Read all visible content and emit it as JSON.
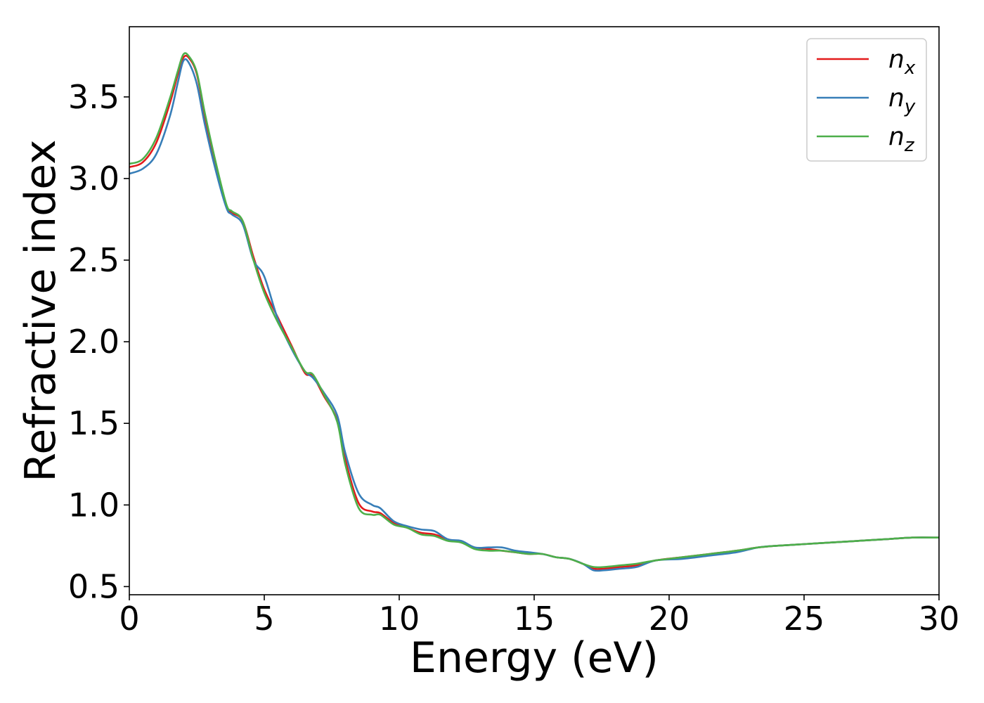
{
  "chart_data": {
    "type": "line",
    "xlabel": "Energy (eV)",
    "ylabel": "Refractive index",
    "xlim": [
      0,
      30
    ],
    "ylim": [
      0.45,
      3.93
    ],
    "xticks": [
      "0",
      "5",
      "10",
      "15",
      "20",
      "25",
      "30"
    ],
    "yticks": [
      "0.5",
      "1.0",
      "1.5",
      "2.0",
      "2.5",
      "3.0",
      "3.5"
    ],
    "grid": false,
    "legend_position": "top-right",
    "series": [
      {
        "name": "n",
        "subscript": "x",
        "color": "#e31a1c",
        "x": [
          0,
          0.5,
          1,
          1.5,
          1.8,
          2.0,
          2.2,
          2.5,
          2.8,
          3.2,
          3.6,
          3.8,
          4.2,
          4.6,
          5.0,
          5.5,
          6.0,
          6.5,
          6.8,
          7.2,
          7.7,
          8.0,
          8.5,
          9.0,
          9.3,
          9.8,
          10.3,
          10.8,
          11.3,
          11.8,
          12.3,
          12.8,
          13.3,
          13.8,
          14.3,
          14.8,
          15.3,
          15.8,
          16.3,
          16.8,
          17.2,
          17.6,
          18.2,
          18.8,
          19.5,
          20.5,
          21.5,
          22.5,
          23.3,
          24.0,
          25.0,
          26.0,
          27.0,
          28.0,
          29.0,
          30.0
        ],
        "y": [
          3.07,
          3.1,
          3.22,
          3.46,
          3.64,
          3.74,
          3.74,
          3.64,
          3.38,
          3.08,
          2.83,
          2.79,
          2.74,
          2.52,
          2.32,
          2.15,
          1.98,
          1.81,
          1.79,
          1.67,
          1.52,
          1.28,
          1.01,
          0.96,
          0.95,
          0.89,
          0.86,
          0.83,
          0.82,
          0.79,
          0.77,
          0.74,
          0.73,
          0.72,
          0.71,
          0.7,
          0.7,
          0.68,
          0.67,
          0.64,
          0.61,
          0.61,
          0.62,
          0.63,
          0.66,
          0.68,
          0.7,
          0.72,
          0.74,
          0.75,
          0.76,
          0.77,
          0.78,
          0.79,
          0.8,
          0.8
        ]
      },
      {
        "name": "n",
        "subscript": "y",
        "color": "#377eb8",
        "x": [
          0,
          0.5,
          1,
          1.5,
          1.8,
          2.0,
          2.2,
          2.5,
          2.8,
          3.2,
          3.6,
          3.8,
          4.2,
          4.6,
          5.0,
          5.5,
          6.0,
          6.5,
          6.8,
          7.2,
          7.7,
          8.0,
          8.5,
          9.0,
          9.3,
          9.8,
          10.3,
          10.8,
          11.3,
          11.8,
          12.3,
          12.8,
          13.3,
          13.8,
          14.3,
          14.8,
          15.3,
          15.8,
          16.3,
          16.8,
          17.2,
          17.6,
          18.2,
          18.8,
          19.5,
          20.5,
          21.5,
          22.5,
          23.3,
          24.0,
          25.0,
          26.0,
          27.0,
          28.0,
          29.0,
          30.0
        ],
        "y": [
          3.03,
          3.06,
          3.15,
          3.38,
          3.59,
          3.72,
          3.71,
          3.58,
          3.33,
          3.05,
          2.82,
          2.78,
          2.72,
          2.5,
          2.4,
          2.14,
          1.96,
          1.82,
          1.78,
          1.69,
          1.55,
          1.32,
          1.07,
          1.0,
          0.98,
          0.9,
          0.87,
          0.85,
          0.84,
          0.79,
          0.78,
          0.74,
          0.74,
          0.74,
          0.72,
          0.71,
          0.7,
          0.68,
          0.67,
          0.64,
          0.6,
          0.6,
          0.61,
          0.62,
          0.66,
          0.67,
          0.69,
          0.71,
          0.74,
          0.75,
          0.76,
          0.77,
          0.78,
          0.79,
          0.8,
          0.8
        ]
      },
      {
        "name": "n",
        "subscript": "z",
        "color": "#4daf4a",
        "x": [
          0,
          0.5,
          1,
          1.5,
          1.8,
          2.0,
          2.2,
          2.5,
          2.8,
          3.2,
          3.6,
          3.8,
          4.2,
          4.6,
          5.0,
          5.5,
          6.0,
          6.5,
          6.8,
          7.2,
          7.7,
          8.0,
          8.5,
          9.0,
          9.3,
          9.8,
          10.3,
          10.8,
          11.3,
          11.8,
          12.3,
          12.8,
          13.3,
          13.8,
          14.3,
          14.8,
          15.3,
          15.8,
          16.3,
          16.8,
          17.2,
          17.6,
          18.2,
          18.8,
          19.5,
          20.5,
          21.5,
          22.5,
          23.3,
          24.0,
          25.0,
          26.0,
          27.0,
          28.0,
          29.0,
          30.0
        ],
        "y": [
          3.09,
          3.12,
          3.25,
          3.49,
          3.66,
          3.76,
          3.75,
          3.65,
          3.4,
          3.1,
          2.84,
          2.8,
          2.74,
          2.5,
          2.3,
          2.12,
          1.97,
          1.82,
          1.8,
          1.68,
          1.51,
          1.25,
          0.98,
          0.94,
          0.94,
          0.88,
          0.86,
          0.82,
          0.81,
          0.78,
          0.77,
          0.73,
          0.72,
          0.72,
          0.71,
          0.7,
          0.7,
          0.68,
          0.67,
          0.64,
          0.62,
          0.62,
          0.63,
          0.64,
          0.66,
          0.68,
          0.7,
          0.72,
          0.74,
          0.75,
          0.76,
          0.77,
          0.78,
          0.79,
          0.8,
          0.8
        ]
      }
    ]
  }
}
